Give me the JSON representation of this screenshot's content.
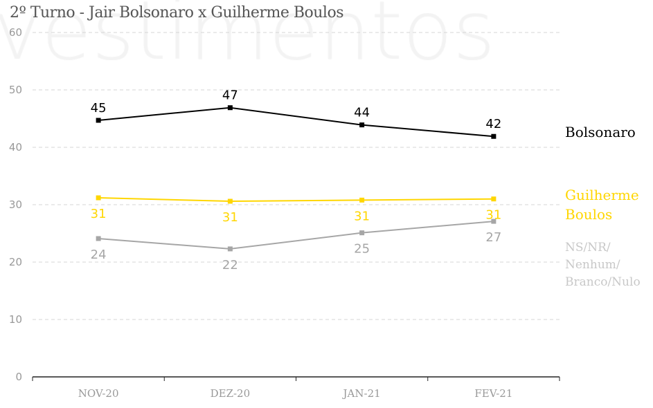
{
  "watermark": "vestimentos",
  "chart_data": {
    "type": "line",
    "title": "2º Turno - Jair Bolsonaro x Guilherme Boulos",
    "categories": [
      "NOV-20",
      "DEZ-20",
      "JAN-21",
      "FEV-21"
    ],
    "ylim": [
      0,
      60
    ],
    "yticks": [
      0,
      10,
      20,
      30,
      40,
      50,
      60
    ],
    "grid": true,
    "legend": "right",
    "series": [
      {
        "name": "Bolsonaro",
        "color": "#000000",
        "values": [
          44.7,
          46.9,
          43.9,
          41.9
        ],
        "labels": [
          "45",
          "47",
          "44",
          "42"
        ],
        "label_position": "above"
      },
      {
        "name": "Guilherme Boulos",
        "color": "#ffd600",
        "values": [
          31.2,
          30.6,
          30.8,
          31.0
        ],
        "labels": [
          "31",
          "31",
          "31",
          "31"
        ],
        "label_position": "below"
      },
      {
        "name": "NS/NR/ Nenhum/ Branco/Nulo",
        "color": "#a6a6a6",
        "legend_color": "#c8c8c8",
        "values": [
          24.1,
          22.3,
          25.1,
          27.1
        ],
        "labels": [
          "24",
          "22",
          "25",
          "27"
        ],
        "label_position": "below"
      }
    ]
  }
}
